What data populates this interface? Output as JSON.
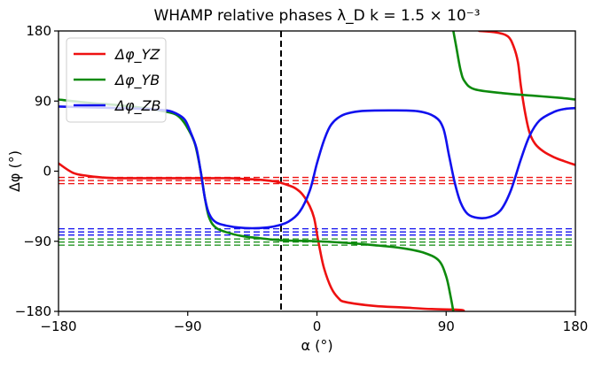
{
  "chart_data": {
    "type": "line",
    "title": "WHAMP relative phases λ_D k = 1.5 × 10⁻³",
    "xlabel": "α (°)",
    "ylabel": "Δφ (°)",
    "xlim": [
      -180,
      180
    ],
    "ylim": [
      -180,
      180
    ],
    "xticks": [
      "−180",
      "−90",
      "0",
      "90",
      "180"
    ],
    "yticks": [
      "180",
      "90",
      "0",
      "−90",
      "−180"
    ],
    "grid": false,
    "legend_position": "top-left",
    "vline": {
      "x": -25,
      "color": "#000000",
      "style": "dashed"
    },
    "series": [
      {
        "name": "Δφ_YZ",
        "color": "#ee1111",
        "segments": [
          [
            [
              -180,
              10
            ],
            [
              -170,
              -2
            ],
            [
              -160,
              -6
            ],
            [
              -150,
              -8
            ],
            [
              -140,
              -9
            ],
            [
              -120,
              -9
            ],
            [
              -100,
              -9
            ],
            [
              -80,
              -9
            ],
            [
              -60,
              -9
            ],
            [
              -50,
              -10
            ],
            [
              -40,
              -11
            ],
            [
              -30,
              -13
            ],
            [
              -25,
              -15
            ],
            [
              -20,
              -18
            ],
            [
              -15,
              -22
            ],
            [
              -10,
              -30
            ],
            [
              -5,
              -45
            ],
            [
              -2,
              -60
            ],
            [
              0,
              -80
            ],
            [
              2,
              -100
            ],
            [
              5,
              -125
            ],
            [
              10,
              -150
            ],
            [
              15,
              -163
            ],
            [
              20,
              -168
            ],
            [
              40,
              -173
            ],
            [
              60,
              -175
            ],
            [
              80,
              -177
            ],
            [
              100,
              -178
            ],
            [
              102,
              -180
            ]
          ],
          [
            [
              113,
              180
            ],
            [
              125,
              178
            ],
            [
              133,
              173
            ],
            [
              137,
              160
            ],
            [
              140,
              140
            ],
            [
              142,
              110
            ],
            [
              145,
              75
            ],
            [
              148,
              50
            ],
            [
              152,
              35
            ],
            [
              158,
              25
            ],
            [
              165,
              18
            ],
            [
              172,
              13
            ],
            [
              180,
              8
            ]
          ]
        ]
      },
      {
        "name": "Δφ_YB",
        "color": "#0d8a0d",
        "segments": [
          [
            [
              -180,
              92
            ],
            [
              -160,
              88
            ],
            [
              -140,
              85
            ],
            [
              -120,
              81
            ],
            [
              -110,
              78
            ],
            [
              -100,
              74
            ],
            [
              -95,
              68
            ],
            [
              -90,
              55
            ],
            [
              -85,
              35
            ],
            [
              -81,
              0
            ],
            [
              -78,
              -35
            ],
            [
              -75,
              -60
            ],
            [
              -70,
              -73
            ],
            [
              -60,
              -80
            ],
            [
              -50,
              -84
            ],
            [
              -40,
              -86
            ],
            [
              -30,
              -88
            ],
            [
              -20,
              -89
            ],
            [
              0,
              -90
            ],
            [
              20,
              -92
            ],
            [
              40,
              -95
            ],
            [
              60,
              -99
            ],
            [
              75,
              -105
            ],
            [
              85,
              -115
            ],
            [
              90,
              -135
            ],
            [
              93,
              -160
            ],
            [
              95,
              -180
            ]
          ],
          [
            [
              95,
              180
            ],
            [
              97,
              160
            ],
            [
              100,
              130
            ],
            [
              103,
              115
            ],
            [
              110,
              105
            ],
            [
              130,
              100
            ],
            [
              150,
              97
            ],
            [
              170,
              94
            ],
            [
              180,
              92
            ]
          ]
        ]
      },
      {
        "name": "Δφ_ZB",
        "color": "#1111ee",
        "segments": [
          [
            [
              -180,
              83
            ],
            [
              -160,
              82
            ],
            [
              -140,
              81
            ],
            [
              -120,
              80
            ],
            [
              -105,
              78
            ],
            [
              -98,
              74
            ],
            [
              -92,
              66
            ],
            [
              -88,
              50
            ],
            [
              -84,
              30
            ],
            [
              -81,
              0
            ],
            [
              -78,
              -35
            ],
            [
              -75,
              -55
            ],
            [
              -70,
              -66
            ],
            [
              -60,
              -71
            ],
            [
              -50,
              -73
            ],
            [
              -40,
              -73
            ],
            [
              -30,
              -71
            ],
            [
              -20,
              -65
            ],
            [
              -12,
              -52
            ],
            [
              -5,
              -25
            ],
            [
              0,
              10
            ],
            [
              5,
              40
            ],
            [
              10,
              60
            ],
            [
              18,
              72
            ],
            [
              30,
              77
            ],
            [
              50,
              78
            ],
            [
              70,
              77
            ],
            [
              82,
              70
            ],
            [
              88,
              55
            ],
            [
              92,
              20
            ],
            [
              96,
              -15
            ],
            [
              100,
              -40
            ],
            [
              105,
              -55
            ],
            [
              112,
              -60
            ],
            [
              120,
              -59
            ],
            [
              128,
              -50
            ],
            [
              135,
              -25
            ],
            [
              142,
              15
            ],
            [
              148,
              45
            ],
            [
              155,
              65
            ],
            [
              165,
              76
            ],
            [
              173,
              80
            ],
            [
              180,
              81
            ]
          ]
        ]
      }
    ],
    "reference_lines": [
      {
        "y": -8,
        "color": "#ee1111"
      },
      {
        "y": -12,
        "color": "#ee1111"
      },
      {
        "y": -16,
        "color": "#ee1111"
      },
      {
        "y": -74,
        "color": "#1111ee"
      },
      {
        "y": -78,
        "color": "#1111ee"
      },
      {
        "y": -82,
        "color": "#1111ee"
      },
      {
        "y": -87,
        "color": "#0d8a0d"
      },
      {
        "y": -91,
        "color": "#0d8a0d"
      },
      {
        "y": -95,
        "color": "#0d8a0d"
      }
    ]
  }
}
